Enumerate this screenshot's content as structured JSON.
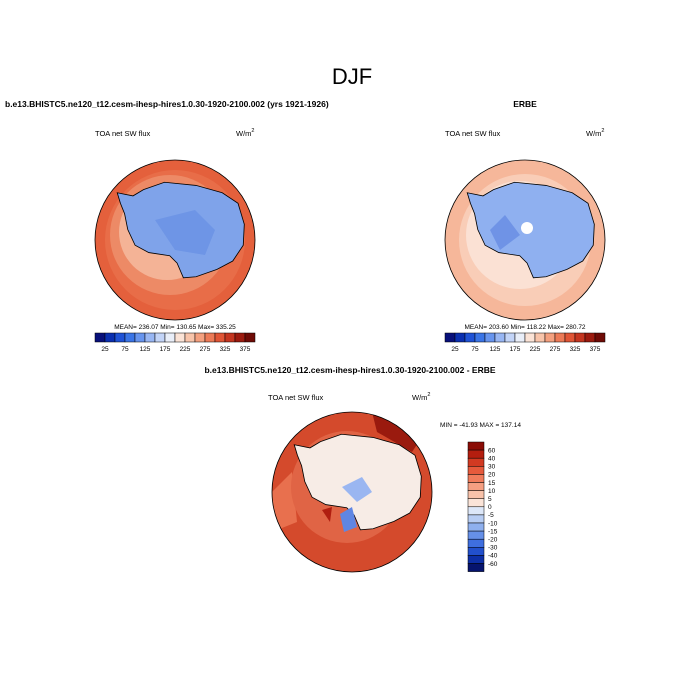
{
  "title": "DJF",
  "panels": [
    {
      "title": "b.e13.BHISTC5.ne120_t12.cesm-ihesp-hires1.0.30-1920-2100.002 (yrs 1921-1926)",
      "left_label": "TOA net SW flux",
      "units": "W/m",
      "units_power": "2",
      "stats": "MEAN= 236.07  Min= 130.65  Max= 335.25",
      "colorbar": {
        "labels": [
          "25",
          "75",
          "125",
          "175",
          "225",
          "275",
          "325",
          "375"
        ],
        "colors": [
          "#08107a",
          "#0a2fb0",
          "#1f52d6",
          "#3a74e6",
          "#6794ee",
          "#98b6f3",
          "#c3d4f7",
          "#e9eef8",
          "#fbe3d6",
          "#f8c4aa",
          "#f4a07f",
          "#ec7a57",
          "#e05536",
          "#c43520",
          "#9c1a0f",
          "#6e0a06"
        ]
      }
    },
    {
      "title": "ERBE",
      "left_label": "TOA net SW flux",
      "units": "W/m",
      "units_power": "2",
      "stats": "MEAN= 203.60  Min= 118.22  Max= 280.72",
      "colorbar": {
        "labels": [
          "25",
          "75",
          "125",
          "175",
          "225",
          "275",
          "325",
          "375"
        ],
        "colors": [
          "#08107a",
          "#0a2fb0",
          "#1f52d6",
          "#3a74e6",
          "#6794ee",
          "#98b6f3",
          "#c3d4f7",
          "#e9eef8",
          "#fbe3d6",
          "#f8c4aa",
          "#f4a07f",
          "#ec7a57",
          "#e05536",
          "#c43520",
          "#9c1a0f",
          "#6e0a06"
        ]
      }
    }
  ],
  "difference": {
    "title": "b.e13.BHISTC5.ne120_t12.cesm-ihesp-hires1.0.30-1920-2100.002 - ERBE",
    "left_label": "TOA net SW flux",
    "units": "W/m",
    "units_power": "2",
    "stats": "MIN = -41.93 MAX = 137.14",
    "colorbar": {
      "labels": [
        "60",
        "40",
        "30",
        "20",
        "15",
        "10",
        "5",
        "0",
        "-5",
        "-10",
        "-15",
        "-20",
        "-30",
        "-40",
        "-60"
      ],
      "colors": [
        "#8a0c05",
        "#b41e0f",
        "#d23a22",
        "#e65a3c",
        "#f07c5c",
        "#f59f82",
        "#f8c2aa",
        "#fbe4d8",
        "#dde7f8",
        "#b8cdf3",
        "#8fb0ee",
        "#6690e8",
        "#3f6fdf",
        "#2250cc",
        "#0d2fa6",
        "#06146e"
      ]
    }
  }
}
